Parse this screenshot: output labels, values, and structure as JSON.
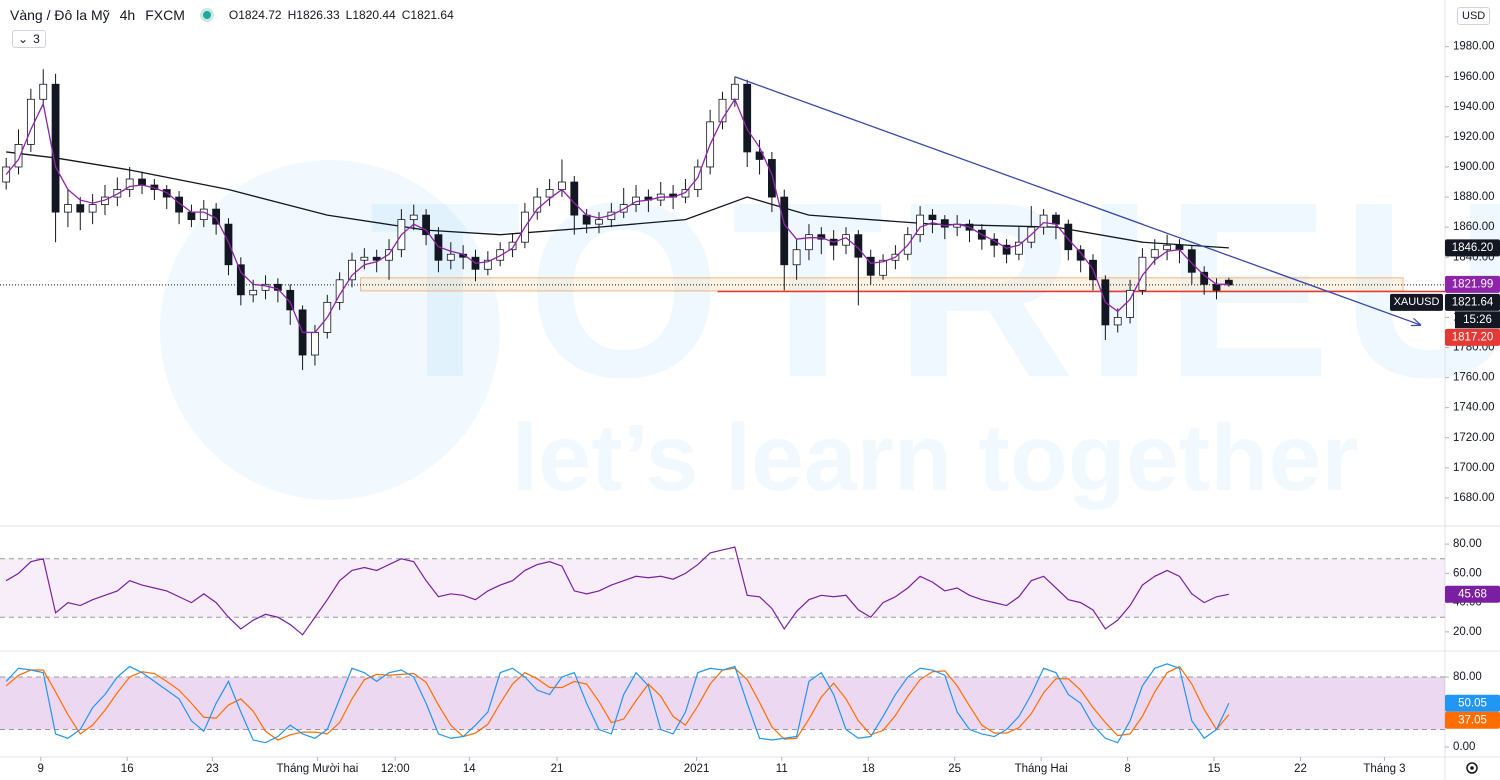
{
  "chart_data": {
    "type": "candlestick",
    "title": "Vàng / Đô la Mỹ",
    "interval": "4h",
    "source": "FXCM",
    "indicators_count": 3,
    "currency": "USD",
    "ohlc": [
      {
        "label": "O",
        "value": 1824.72
      },
      {
        "label": "H",
        "value": 1826.33
      },
      {
        "label": "L",
        "value": 1820.44
      },
      {
        "label": "C",
        "value": 1821.64
      }
    ],
    "watermark": {
      "title": "TOTRIEU",
      "tagline": "let’s learn together"
    },
    "up_color": "#ffffff",
    "down_color": "#131722",
    "wick_color": "#131722",
    "xlim": [
      -0.5,
      116.5
    ],
    "xticks": [
      {
        "value": 2.8,
        "label": "9"
      },
      {
        "value": 9.8,
        "label": "16"
      },
      {
        "value": 16.7,
        "label": "23"
      },
      {
        "value": 25.2,
        "label": "Tháng Mười hai"
      },
      {
        "value": 31.5,
        "label": "12:00"
      },
      {
        "value": 37.5,
        "label": "14"
      },
      {
        "value": 44.6,
        "label": "21"
      },
      {
        "value": 55.9,
        "label": "2021"
      },
      {
        "value": 62.8,
        "label": "11"
      },
      {
        "value": 69.8,
        "label": "18"
      },
      {
        "value": 76.8,
        "label": "25"
      },
      {
        "value": 83.8,
        "label": "Tháng Hai"
      },
      {
        "value": 90.8,
        "label": "8"
      },
      {
        "value": 97.8,
        "label": "15"
      },
      {
        "value": 104.8,
        "label": "22"
      },
      {
        "value": 111.6,
        "label": "Tháng 3"
      }
    ],
    "ylim": [
      1662,
      2011
    ],
    "yticks": [
      {
        "value": 1680,
        "label": "1680.00"
      },
      {
        "value": 1700,
        "label": "1700.00"
      },
      {
        "value": 1720,
        "label": "1720.00"
      },
      {
        "value": 1740,
        "label": "1740.00"
      },
      {
        "value": 1760,
        "label": "1760.00"
      },
      {
        "value": 1780,
        "label": "1780.00"
      },
      {
        "value": 1800,
        "label": "1800.00"
      },
      {
        "value": 1820,
        "label": "1820.00"
      },
      {
        "value": 1840,
        "label": "1840.00"
      },
      {
        "value": 1860,
        "label": "1860.00"
      },
      {
        "value": 1880,
        "label": "1880.00"
      },
      {
        "value": 1900,
        "label": "1900.00"
      },
      {
        "value": 1920,
        "label": "1920.00"
      },
      {
        "value": 1940,
        "label": "1940.00"
      },
      {
        "value": 1960,
        "label": "1960.00"
      },
      {
        "value": 1980,
        "label": "1980.00"
      }
    ],
    "candles": [
      [
        1890,
        1906,
        1885,
        1900
      ],
      [
        1900,
        1925,
        1895,
        1915
      ],
      [
        1915,
        1952,
        1910,
        1945
      ],
      [
        1945,
        1965,
        1940,
        1955
      ],
      [
        1955,
        1962,
        1850,
        1870
      ],
      [
        1870,
        1885,
        1860,
        1875
      ],
      [
        1875,
        1880,
        1858,
        1870
      ],
      [
        1870,
        1882,
        1862,
        1875
      ],
      [
        1875,
        1888,
        1868,
        1880
      ],
      [
        1880,
        1893,
        1874,
        1885
      ],
      [
        1885,
        1900,
        1880,
        1892
      ],
      [
        1892,
        1897,
        1882,
        1888
      ],
      [
        1888,
        1892,
        1878,
        1885
      ],
      [
        1885,
        1888,
        1872,
        1880
      ],
      [
        1880,
        1884,
        1862,
        1870
      ],
      [
        1870,
        1875,
        1860,
        1865
      ],
      [
        1865,
        1878,
        1860,
        1872
      ],
      [
        1872,
        1876,
        1855,
        1862
      ],
      [
        1862,
        1866,
        1828,
        1835
      ],
      [
        1835,
        1840,
        1808,
        1815
      ],
      [
        1815,
        1825,
        1810,
        1818
      ],
      [
        1818,
        1828,
        1812,
        1822
      ],
      [
        1822,
        1826,
        1810,
        1818
      ],
      [
        1818,
        1822,
        1795,
        1805
      ],
      [
        1805,
        1808,
        1765,
        1775
      ],
      [
        1775,
        1795,
        1768,
        1790
      ],
      [
        1790,
        1815,
        1786,
        1810
      ],
      [
        1810,
        1830,
        1805,
        1825
      ],
      [
        1825,
        1843,
        1820,
        1838
      ],
      [
        1838,
        1846,
        1832,
        1840
      ],
      [
        1840,
        1845,
        1830,
        1838
      ],
      [
        1838,
        1852,
        1825,
        1845
      ],
      [
        1845,
        1872,
        1840,
        1865
      ],
      [
        1865,
        1875,
        1858,
        1868
      ],
      [
        1868,
        1872,
        1848,
        1855
      ],
      [
        1855,
        1860,
        1830,
        1838
      ],
      [
        1838,
        1850,
        1832,
        1842
      ],
      [
        1842,
        1848,
        1832,
        1840
      ],
      [
        1840,
        1845,
        1824,
        1832
      ],
      [
        1832,
        1844,
        1828,
        1838
      ],
      [
        1838,
        1850,
        1834,
        1845
      ],
      [
        1845,
        1856,
        1840,
        1850
      ],
      [
        1850,
        1876,
        1846,
        1870
      ],
      [
        1870,
        1886,
        1865,
        1880
      ],
      [
        1880,
        1892,
        1874,
        1885
      ],
      [
        1885,
        1905,
        1880,
        1890
      ],
      [
        1890,
        1894,
        1855,
        1868
      ],
      [
        1868,
        1872,
        1856,
        1862
      ],
      [
        1862,
        1870,
        1856,
        1865
      ],
      [
        1865,
        1876,
        1860,
        1870
      ],
      [
        1870,
        1886,
        1866,
        1875
      ],
      [
        1875,
        1888,
        1870,
        1880
      ],
      [
        1880,
        1885,
        1870,
        1878
      ],
      [
        1878,
        1890,
        1874,
        1882
      ],
      [
        1882,
        1888,
        1872,
        1880
      ],
      [
        1880,
        1892,
        1876,
        1885
      ],
      [
        1885,
        1905,
        1880,
        1900
      ],
      [
        1900,
        1938,
        1895,
        1930
      ],
      [
        1930,
        1950,
        1925,
        1945
      ],
      [
        1945,
        1960,
        1940,
        1955
      ],
      [
        1955,
        1958,
        1900,
        1910
      ],
      [
        1910,
        1918,
        1895,
        1905
      ],
      [
        1905,
        1910,
        1870,
        1880
      ],
      [
        1880,
        1885,
        1818,
        1835
      ],
      [
        1835,
        1852,
        1825,
        1845
      ],
      [
        1845,
        1862,
        1838,
        1855
      ],
      [
        1855,
        1860,
        1842,
        1852
      ],
      [
        1852,
        1858,
        1838,
        1848
      ],
      [
        1848,
        1860,
        1842,
        1855
      ],
      [
        1855,
        1858,
        1808,
        1840
      ],
      [
        1840,
        1845,
        1822,
        1828
      ],
      [
        1828,
        1842,
        1825,
        1838
      ],
      [
        1838,
        1848,
        1832,
        1842
      ],
      [
        1842,
        1860,
        1838,
        1855
      ],
      [
        1855,
        1874,
        1850,
        1868
      ],
      [
        1868,
        1872,
        1856,
        1865
      ],
      [
        1865,
        1868,
        1852,
        1860
      ],
      [
        1860,
        1868,
        1854,
        1862
      ],
      [
        1862,
        1865,
        1850,
        1858
      ],
      [
        1858,
        1862,
        1845,
        1852
      ],
      [
        1852,
        1856,
        1840,
        1848
      ],
      [
        1848,
        1852,
        1836,
        1842
      ],
      [
        1842,
        1860,
        1838,
        1850
      ],
      [
        1850,
        1874,
        1846,
        1860
      ],
      [
        1860,
        1872,
        1855,
        1868
      ],
      [
        1868,
        1870,
        1852,
        1862
      ],
      [
        1862,
        1865,
        1838,
        1845
      ],
      [
        1845,
        1848,
        1830,
        1838
      ],
      [
        1838,
        1842,
        1818,
        1825
      ],
      [
        1825,
        1828,
        1785,
        1795
      ],
      [
        1795,
        1806,
        1790,
        1800
      ],
      [
        1800,
        1825,
        1796,
        1818
      ],
      [
        1818,
        1846,
        1815,
        1840
      ],
      [
        1840,
        1852,
        1835,
        1845
      ],
      [
        1845,
        1855,
        1838,
        1848
      ],
      [
        1848,
        1852,
        1836,
        1845
      ],
      [
        1845,
        1848,
        1822,
        1830
      ],
      [
        1830,
        1834,
        1815,
        1822
      ],
      [
        1822,
        1826,
        1812,
        1818
      ],
      [
        1824.72,
        1826.33,
        1820.44,
        1821.64
      ]
    ],
    "ema": {
      "color": "#8e24aa",
      "values": [
        1895,
        1905,
        1925,
        1942,
        1900,
        1885,
        1878,
        1876,
        1878,
        1882,
        1887,
        1888,
        1886,
        1883,
        1876,
        1870,
        1870,
        1866,
        1850,
        1830,
        1822,
        1821,
        1819,
        1810,
        1790,
        1790,
        1800,
        1815,
        1828,
        1835,
        1837,
        1842,
        1855,
        1862,
        1858,
        1847,
        1844,
        1842,
        1836,
        1837,
        1841,
        1846,
        1860,
        1872,
        1879,
        1885,
        1876,
        1868,
        1866,
        1868,
        1872,
        1877,
        1878,
        1880,
        1880,
        1883,
        1893,
        1915,
        1932,
        1945,
        1925,
        1913,
        1895,
        1862,
        1852,
        1853,
        1853,
        1850,
        1853,
        1846,
        1836,
        1837,
        1840,
        1848,
        1860,
        1863,
        1861,
        1862,
        1860,
        1855,
        1851,
        1846,
        1848,
        1855,
        1863,
        1862,
        1852,
        1843,
        1832,
        1810,
        1804,
        1812,
        1828,
        1838,
        1844,
        1845,
        1836,
        1828,
        1822,
        1822
      ]
    },
    "ma200": {
      "color": "#131722",
      "x": [
        0,
        4,
        10,
        18,
        26,
        34,
        40,
        48,
        55,
        60,
        65,
        75,
        85,
        92,
        99
      ],
      "values": [
        1910,
        1906,
        1898,
        1885,
        1868,
        1858,
        1855,
        1860,
        1865,
        1880,
        1868,
        1862,
        1860,
        1850,
        1846.2
      ]
    },
    "trendline": {
      "color": "#3949ab",
      "points": [
        [
          59,
          1960
        ],
        [
          114.5,
          1795
        ]
      ]
    },
    "zone": {
      "x": [
        28.7,
        113.1
      ],
      "y": [
        1817.6,
        1826.3
      ]
    },
    "support_line": {
      "x_start": 57.6,
      "value": 1817.2,
      "color": "#e53935"
    },
    "price_tags": [
      {
        "value": 1846.2,
        "label": "1846.20",
        "color": "#131722"
      },
      {
        "value": 1821.99,
        "label": "1821.99",
        "color": "#8e24aa"
      },
      {
        "value": 1821.64,
        "label": "1821.64",
        "symbol": "XAUUSD",
        "countdown": "15:26",
        "color": "#131722"
      },
      {
        "value": 1817.2,
        "label": "1817.20",
        "color": "#e53935"
      }
    ],
    "rsi": {
      "color": "#7b1fa2",
      "ylim": [
        7.6,
        91.7
      ],
      "band": [
        30,
        70
      ],
      "yticks": [
        {
          "value": 20,
          "label": "20.00"
        },
        {
          "value": 40,
          "label": "40.00"
        },
        {
          "value": 60,
          "label": "60.00"
        },
        {
          "value": 80,
          "label": "80.00"
        }
      ],
      "values": [
        55,
        60,
        68,
        70,
        33,
        40,
        38,
        42,
        45,
        48,
        55,
        52,
        50,
        48,
        44,
        40,
        46,
        40,
        30,
        22,
        28,
        32,
        30,
        25,
        18,
        30,
        42,
        55,
        62,
        64,
        62,
        66,
        70,
        68,
        55,
        44,
        46,
        45,
        42,
        48,
        52,
        55,
        62,
        66,
        68,
        65,
        48,
        46,
        48,
        52,
        55,
        58,
        57,
        58,
        56,
        60,
        66,
        74,
        76,
        78,
        45,
        44,
        36,
        22,
        34,
        42,
        45,
        44,
        45,
        35,
        30,
        40,
        44,
        50,
        58,
        54,
        48,
        50,
        45,
        42,
        40,
        38,
        44,
        55,
        58,
        50,
        42,
        40,
        35,
        22,
        28,
        38,
        52,
        58,
        62,
        58,
        46,
        40,
        44,
        45.68
      ]
    },
    "stoch": {
      "ylim": [
        -11.4,
        108.6
      ],
      "band": [
        20,
        80
      ],
      "yticks": [
        {
          "value": 0,
          "label": "0.00"
        },
        {
          "value": 80,
          "label": "80.00"
        }
      ],
      "k": {
        "color": "#2196f3",
        "values": [
          75,
          90,
          88,
          85,
          15,
          10,
          20,
          45,
          60,
          80,
          92,
          85,
          75,
          65,
          55,
          30,
          18,
          50,
          75,
          40,
          8,
          5,
          12,
          25,
          15,
          10,
          20,
          55,
          90,
          85,
          75,
          85,
          88,
          80,
          50,
          15,
          10,
          12,
          25,
          40,
          85,
          90,
          80,
          65,
          60,
          80,
          85,
          50,
          20,
          15,
          60,
          85,
          70,
          20,
          15,
          40,
          85,
          90,
          88,
          92,
          50,
          10,
          8,
          10,
          12,
          75,
          85,
          60,
          20,
          10,
          12,
          35,
          60,
          80,
          90,
          88,
          82,
          40,
          20,
          15,
          12,
          20,
          35,
          60,
          90,
          85,
          60,
          50,
          25,
          10,
          5,
          30,
          70,
          90,
          95,
          90,
          30,
          10,
          20,
          50.05
        ]
      },
      "d": {
        "color": "#ff6d00",
        "values": [
          70,
          82,
          88,
          88,
          63,
          37,
          15,
          25,
          42,
          62,
          80,
          86,
          84,
          75,
          65,
          50,
          34,
          33,
          48,
          55,
          41,
          18,
          8,
          14,
          17,
          17,
          15,
          28,
          55,
          77,
          83,
          82,
          83,
          84,
          74,
          48,
          25,
          12,
          16,
          26,
          50,
          72,
          85,
          78,
          68,
          68,
          75,
          72,
          52,
          28,
          32,
          53,
          72,
          58,
          35,
          25,
          47,
          72,
          88,
          90,
          77,
          51,
          23,
          9,
          10,
          32,
          57,
          73,
          55,
          30,
          14,
          19,
          36,
          58,
          77,
          86,
          87,
          70,
          47,
          25,
          16,
          16,
          22,
          38,
          62,
          78,
          78,
          65,
          45,
          28,
          13,
          15,
          35,
          63,
          85,
          92,
          72,
          43,
          20,
          37.05
        ]
      }
    }
  }
}
